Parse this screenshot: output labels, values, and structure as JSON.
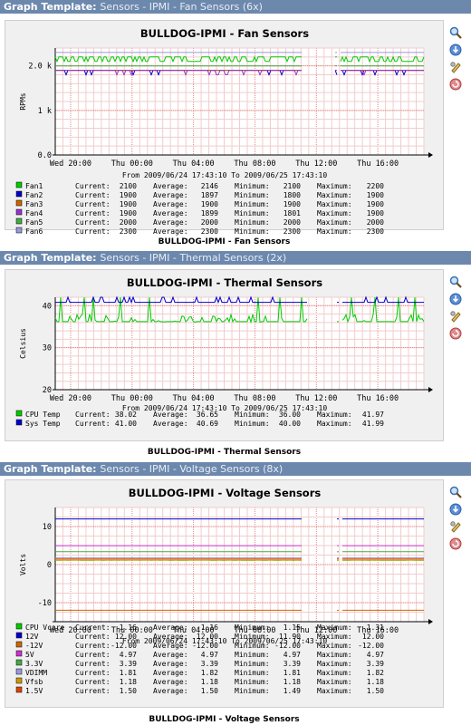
{
  "charts": [
    {
      "header_label": "Graph Template:",
      "header_name": "Sensors - IPMI - Fan Sensors (6x)",
      "caption": "BULLDOG-IPMI - Fan Sensors",
      "chart_data": {
        "type": "line",
        "title": "BULLDOG-IPMI - Fan Sensors",
        "ylabel": "RPMs",
        "ylim": [
          0,
          2400
        ],
        "y_ticks": [
          0,
          1000,
          2000
        ],
        "y_tick_labels": [
          "0.0",
          "1 k",
          "2.0 k"
        ],
        "x_tick_labels": [
          "Wed 20:00",
          "Thu 00:00",
          "Thu 04:00",
          "Thu 08:00",
          "Thu 12:00",
          "Thu 16:00"
        ],
        "date_range": "From 2009/06/24 17:43:10 To 2009/06/25 17:43:10",
        "series": [
          {
            "name": "Fan1",
            "color": "#00cc00",
            "current": "2100",
            "average": "2146",
            "minimum": "2100",
            "maximum": "2200"
          },
          {
            "name": "Fan2",
            "color": "#0000cc",
            "current": "1900",
            "average": "1897",
            "minimum": "1800",
            "maximum": "1900"
          },
          {
            "name": "Fan3",
            "color": "#cc6600",
            "current": "1900",
            "average": "1900",
            "minimum": "1900",
            "maximum": "1900"
          },
          {
            "name": "Fan4",
            "color": "#9933cc",
            "current": "1900",
            "average": "1899",
            "minimum": "1801",
            "maximum": "1900"
          },
          {
            "name": "Fan5",
            "color": "#44aa44",
            "current": "2000",
            "average": "2000",
            "minimum": "2000",
            "maximum": "2000"
          },
          {
            "name": "Fan6",
            "color": "#9999dd",
            "current": "2300",
            "average": "2300",
            "minimum": "2300",
            "maximum": "2300"
          }
        ],
        "grid": true
      }
    },
    {
      "header_label": "Graph Template:",
      "header_name": "Sensors - IPMI - Thermal Sensors (2x)",
      "caption": "BULLDOG-IPMI - Thermal Sensors",
      "chart_data": {
        "type": "line",
        "title": "BULLDOG-IPMI - Thermal Sensors",
        "ylabel": "Celsius",
        "ylim": [
          20,
          42
        ],
        "y_ticks": [
          20,
          30,
          40
        ],
        "y_tick_labels": [
          "20",
          "30",
          "40"
        ],
        "x_tick_labels": [
          "Wed 20:00",
          "Thu 00:00",
          "Thu 04:00",
          "Thu 08:00",
          "Thu 12:00",
          "Thu 16:00"
        ],
        "date_range": "From 2009/06/24 17:43:10 To 2009/06/25 17:43:10",
        "series": [
          {
            "name": "CPU Temp",
            "color": "#00cc00",
            "current": "38.02",
            "average": "36.65",
            "minimum": "36.00",
            "maximum": "41.97"
          },
          {
            "name": "Sys Temp",
            "color": "#0000cc",
            "current": "41.00",
            "average": "40.69",
            "minimum": "40.00",
            "maximum": "41.99"
          }
        ],
        "grid": true
      }
    },
    {
      "header_label": "Graph Template:",
      "header_name": "Sensors - IPMI - Voltage Sensors (8x)",
      "caption": "BULLDOG-IPMI - Voltage Sensors",
      "chart_data": {
        "type": "line",
        "title": "BULLDOG-IPMI - Voltage Sensors",
        "ylabel": "Volts",
        "ylim": [
          -15,
          15
        ],
        "y_ticks": [
          -10,
          0,
          10
        ],
        "y_tick_labels": [
          "-10",
          "0",
          "10"
        ],
        "x_tick_labels": [
          "Wed 20:00",
          "Thu 00:00",
          "Thu 04:00",
          "Thu 08:00",
          "Thu 12:00",
          "Thu 16:00"
        ],
        "date_range": "From 2009/06/24 17:43:10 To 2009/06/25 17:43:10",
        "series": [
          {
            "name": "CPU Vcore",
            "color": "#00cc00",
            "current": "1.16",
            "average": "1.16",
            "minimum": "1.15",
            "maximum": "1.31"
          },
          {
            "name": "12V",
            "color": "#0000cc",
            "current": "12.00",
            "average": "12.00",
            "minimum": "11.90",
            "maximum": "12.00"
          },
          {
            "name": "-12V",
            "color": "#cc6600",
            "current": "-12.00",
            "average": "-12.00",
            "minimum": "-12.00",
            "maximum": "-12.00"
          },
          {
            "name": "5V",
            "color": "#cc33cc",
            "current": "4.97",
            "average": "4.97",
            "minimum": "4.97",
            "maximum": "4.97"
          },
          {
            "name": "3.3V",
            "color": "#44aa44",
            "current": "3.39",
            "average": "3.39",
            "minimum": "3.39",
            "maximum": "3.39"
          },
          {
            "name": "VDIMM",
            "color": "#9999dd",
            "current": "1.81",
            "average": "1.82",
            "minimum": "1.81",
            "maximum": "1.82"
          },
          {
            "name": "Vfsb",
            "color": "#cc9900",
            "current": "1.18",
            "average": "1.18",
            "minimum": "1.18",
            "maximum": "1.18"
          },
          {
            "name": "1.5V",
            "color": "#dd4400",
            "current": "1.50",
            "average": "1.50",
            "minimum": "1.49",
            "maximum": "1.50"
          }
        ],
        "grid": true
      }
    }
  ],
  "stat_labels": {
    "current": "Current:",
    "average": "Average:",
    "minimum": "Minimum:",
    "maximum": "Maximum:"
  },
  "icons": [
    "zoom-icon",
    "download-icon",
    "edit-icon",
    "delete-icon"
  ]
}
